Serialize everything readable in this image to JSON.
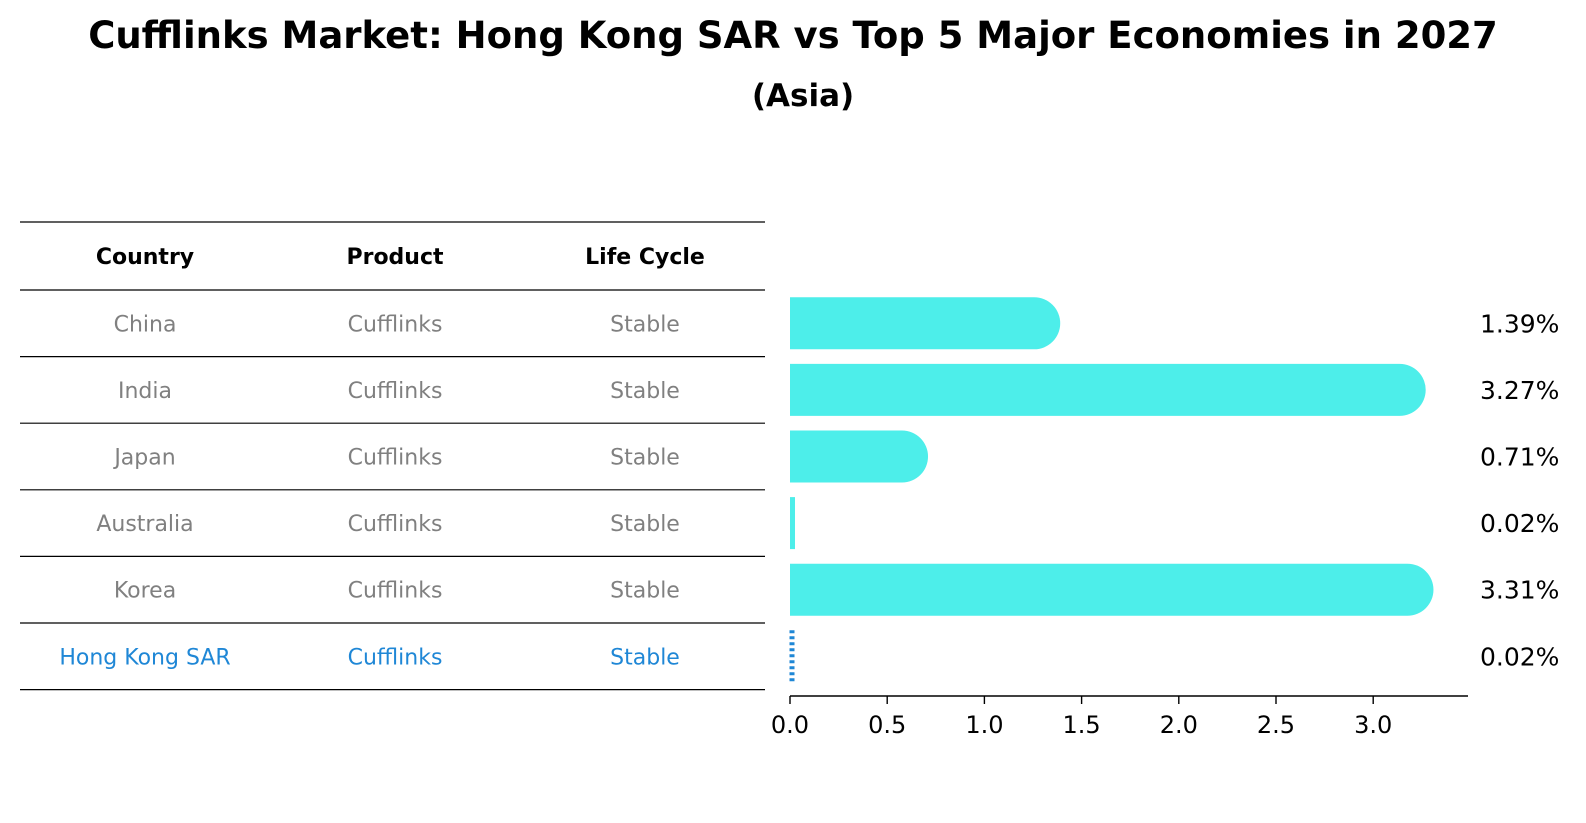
{
  "title": "Cufflinks Market: Hong Kong SAR vs Top 5 Major Economies in 2027",
  "subtitle": "(Asia)",
  "colors": {
    "bar": "#4deeea",
    "highlight": "#1f87d6",
    "muted": "#808080"
  },
  "table": {
    "headers": [
      "Country",
      "Product",
      "Life Cycle"
    ],
    "rows": [
      [
        "China",
        "Cufflinks",
        "Stable"
      ],
      [
        "India",
        "Cufflinks",
        "Stable"
      ],
      [
        "Japan",
        "Cufflinks",
        "Stable"
      ],
      [
        "Australia",
        "Cufflinks",
        "Stable"
      ],
      [
        "Korea",
        "Cufflinks",
        "Stable"
      ],
      [
        "Hong Kong SAR",
        "Cufflinks",
        "Stable"
      ]
    ],
    "highlight_row": 5
  },
  "chart_data": {
    "type": "bar",
    "orientation": "horizontal",
    "categories": [
      "China",
      "India",
      "Japan",
      "Australia",
      "Korea",
      "Hong Kong SAR"
    ],
    "values": [
      1.39,
      3.27,
      0.71,
      0.02,
      3.31,
      0.02
    ],
    "value_labels": [
      "1.39%",
      "3.27%",
      "0.71%",
      "0.02%",
      "3.31%",
      "0.02%"
    ],
    "xlim": [
      0,
      3.48
    ],
    "xticks": [
      0.0,
      0.5,
      1.0,
      1.5,
      2.0,
      2.5,
      3.0
    ],
    "xtick_labels": [
      "0.0",
      "0.5",
      "1.0",
      "1.5",
      "2.0",
      "2.5",
      "3.0"
    ],
    "highlight_category": "Hong Kong SAR",
    "grid": false,
    "xlabel": "",
    "ylabel": ""
  }
}
